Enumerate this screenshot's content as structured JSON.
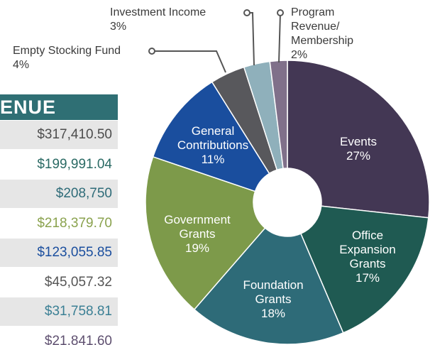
{
  "table": {
    "header": "ENUE",
    "rows": [
      "$317,410.50",
      "$199,991.04",
      "$208,750",
      "$218,379.70",
      "$123,055.85",
      "$45,057.32",
      "$31,758.81",
      "$21,841.60"
    ],
    "row_colors": [
      "#4d4d4d",
      "#2a6a64",
      "#2e6b78",
      "#8aa24e",
      "#1a4e9e",
      "#555555",
      "#3a7f94",
      "#5f5070"
    ]
  },
  "chart_data": {
    "type": "pie",
    "donut": true,
    "categories": [
      "Events",
      "Office Expansion Grants",
      "Foundation Grants",
      "Government Grants",
      "General Contributions",
      "Empty Stocking Fund",
      "Investment Income",
      "Program Revenue/ Membership"
    ],
    "values": [
      27,
      17,
      18,
      19,
      11,
      4,
      3,
      2
    ],
    "value_labels": [
      "27%",
      "17%",
      "18%",
      "19%",
      "11%",
      "4%",
      "3%",
      "2%"
    ],
    "colors": [
      "#433754",
      "#1f5a52",
      "#2e6b78",
      "#7d9a4a",
      "#1a4e9e",
      "#58585c",
      "#8fb0bb",
      "#80708a"
    ]
  }
}
